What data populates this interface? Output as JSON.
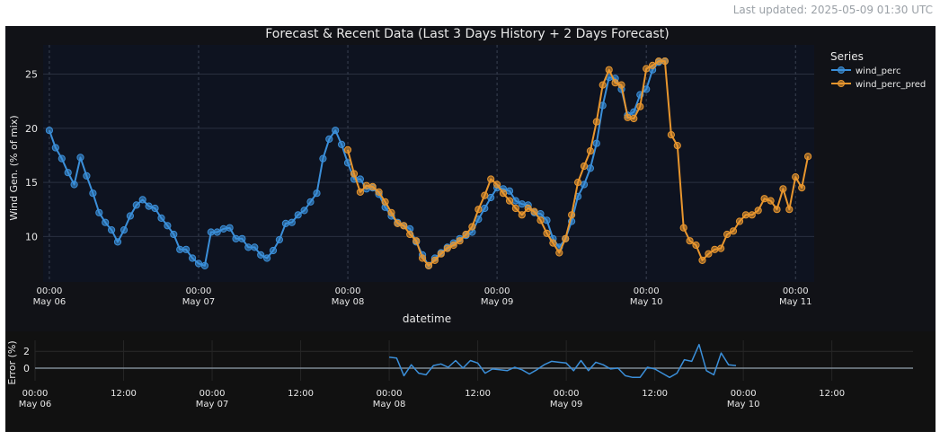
{
  "header": {
    "last_updated": "Last updated: 2025-05-09 01:30 UTC"
  },
  "colors": {
    "actual": "#3b8fd9",
    "pred": "#e8962e",
    "plot_bg": "#0e1320",
    "paper_bg": "#111217",
    "grid": "#2a3040"
  },
  "chart_data": [
    {
      "type": "line",
      "title": "Forecast & Recent Data (Last 3 Days History + 2 Days Forecast)",
      "xlabel": "datetime",
      "ylabel": "Wind Gen. (% of mix)",
      "xlim": [
        "2025-05-05T23:00",
        "2025-05-11T03:00"
      ],
      "ylim": [
        5.8,
        27.7
      ],
      "yticks": [
        10,
        15,
        20,
        25
      ],
      "ytick_labels": [
        "10",
        "15",
        "20",
        "25"
      ],
      "xticks": [
        {
          "t": "2025-05-06T00:00",
          "label1": "00:00",
          "label2": "May 06"
        },
        {
          "t": "2025-05-07T00:00",
          "label1": "00:00",
          "label2": "May 07"
        },
        {
          "t": "2025-05-08T00:00",
          "label1": "00:00",
          "label2": "May 08"
        },
        {
          "t": "2025-05-09T00:00",
          "label1": "00:00",
          "label2": "May 09"
        },
        {
          "t": "2025-05-10T00:00",
          "label1": "00:00",
          "label2": "May 10"
        },
        {
          "t": "2025-05-11T00:00",
          "label1": "00:00",
          "label2": "May 11"
        }
      ],
      "legend": {
        "title": "Series",
        "placement": "top-right"
      },
      "series": [
        {
          "name": "wind_perc",
          "start": "2025-05-06T00:00",
          "step_minutes": 60,
          "values": [
            19.8,
            18.2,
            17.2,
            15.9,
            14.8,
            17.3,
            15.6,
            14.0,
            12.2,
            11.3,
            10.6,
            9.5,
            10.6,
            11.9,
            12.9,
            13.4,
            12.8,
            12.6,
            11.7,
            11.0,
            10.2,
            8.8,
            8.8,
            8.0,
            7.5,
            7.3,
            10.4,
            10.4,
            10.7,
            10.8,
            9.8,
            9.8,
            9.0,
            9.0,
            8.3,
            8.0,
            8.7,
            9.7,
            11.2,
            11.3,
            12.0,
            12.4,
            13.2,
            14.0,
            17.2,
            19.0,
            19.8,
            18.5,
            16.8,
            15.3,
            15.3,
            14.4,
            14.5,
            13.9,
            12.7,
            11.9,
            11.3,
            11.0,
            10.7,
            9.5,
            8.3,
            7.3,
            8.0,
            8.5,
            9.0,
            9.4,
            9.8,
            10.1,
            10.4,
            11.6,
            12.6,
            13.6,
            14.5,
            14.4,
            14.2,
            13.3,
            13.0,
            12.9,
            12.2,
            12.1,
            11.5,
            9.8,
            9.0,
            9.8,
            11.4,
            13.7,
            14.8,
            16.3,
            18.6,
            22.1,
            24.7,
            24.6,
            23.6,
            21.2,
            21.5,
            23.1,
            23.6,
            25.4,
            26.1,
            26.2
          ]
        },
        {
          "name": "wind_perc_pred",
          "start": "2025-05-08T00:00",
          "step_minutes": 60,
          "values": [
            18.0,
            15.8,
            14.1,
            14.7,
            14.6,
            14.1,
            13.2,
            12.2,
            11.2,
            11.0,
            10.2,
            9.6,
            8.0,
            7.3,
            7.8,
            8.4,
            8.9,
            9.2,
            9.6,
            10.2,
            10.9,
            12.5,
            13.8,
            15.3,
            14.8,
            14.0,
            13.3,
            12.6,
            12.0,
            12.6,
            12.3,
            11.5,
            10.3,
            9.4,
            8.5,
            9.8,
            12.0,
            15.0,
            16.5,
            17.9,
            20.6,
            24.0,
            25.4,
            24.2,
            24.0,
            21.0,
            20.9,
            22.0,
            25.5,
            25.8,
            26.2,
            26.2,
            19.4,
            18.4,
            10.8,
            9.6,
            9.2,
            7.8,
            8.4,
            8.8,
            8.9,
            10.2,
            10.5,
            11.4,
            12.0,
            12.0,
            12.4,
            13.5,
            13.3,
            12.5,
            14.4,
            12.5,
            15.5,
            14.5,
            17.4
          ]
        }
      ]
    },
    {
      "type": "line",
      "title": "",
      "xlabel": "",
      "ylabel": "Error (%)",
      "xlim": [
        "2025-05-06T00:00",
        "2025-05-10T23:00"
      ],
      "ylim": [
        -1.5,
        3.3
      ],
      "yticks": [
        0,
        2
      ],
      "ytick_labels": [
        "0",
        "2"
      ],
      "xticks": [
        {
          "t": "2025-05-06T00:00",
          "label1": "00:00",
          "label2": "May 06"
        },
        {
          "t": "2025-05-06T12:00",
          "label1": "12:00",
          "label2": ""
        },
        {
          "t": "2025-05-07T00:00",
          "label1": "00:00",
          "label2": "May 07"
        },
        {
          "t": "2025-05-07T12:00",
          "label1": "12:00",
          "label2": ""
        },
        {
          "t": "2025-05-08T00:00",
          "label1": "00:00",
          "label2": "May 08"
        },
        {
          "t": "2025-05-08T12:00",
          "label1": "12:00",
          "label2": ""
        },
        {
          "t": "2025-05-09T00:00",
          "label1": "00:00",
          "label2": "May 09"
        },
        {
          "t": "2025-05-09T12:00",
          "label1": "12:00",
          "label2": ""
        },
        {
          "t": "2025-05-10T00:00",
          "label1": "00:00",
          "label2": "May 10"
        },
        {
          "t": "2025-05-10T12:00",
          "label1": "12:00",
          "label2": ""
        }
      ],
      "series": [
        {
          "name": "error",
          "start": "2025-05-08T00:00",
          "step_minutes": 60,
          "values": [
            1.3,
            1.2,
            -0.9,
            0.4,
            -0.6,
            -0.8,
            0.3,
            0.5,
            0.1,
            0.9,
            0.0,
            0.9,
            0.6,
            -0.6,
            -0.1,
            -0.2,
            -0.3,
            0.1,
            -0.2,
            -0.7,
            -0.2,
            0.4,
            0.8,
            0.7,
            0.6,
            -0.3,
            0.9,
            -0.3,
            0.7,
            0.4,
            -0.1,
            0.0,
            -0.9,
            -1.1,
            -1.1,
            0.1,
            -0.1,
            -0.6,
            -1.1,
            -0.6,
            1.0,
            0.8,
            2.8,
            -0.3,
            -0.8,
            1.8,
            0.4,
            0.3
          ]
        }
      ]
    }
  ]
}
